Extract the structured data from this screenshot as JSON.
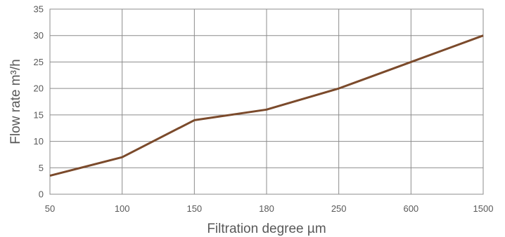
{
  "chart_data": {
    "type": "line",
    "categories": [
      "50",
      "100",
      "150",
      "180",
      "250",
      "600",
      "1500"
    ],
    "series": [
      {
        "values": [
          3.5,
          7,
          14,
          16,
          20,
          25,
          30
        ]
      }
    ],
    "xlabel": "Filtration degree µm",
    "ylabel": "Flow rate m³/h",
    "ylim": [
      0,
      35
    ],
    "yticks": [
      0,
      5,
      10,
      15,
      20,
      25,
      30,
      35
    ],
    "grid": true,
    "line_color": "#7b4a2b",
    "grid_color": "#8c8c8c"
  }
}
